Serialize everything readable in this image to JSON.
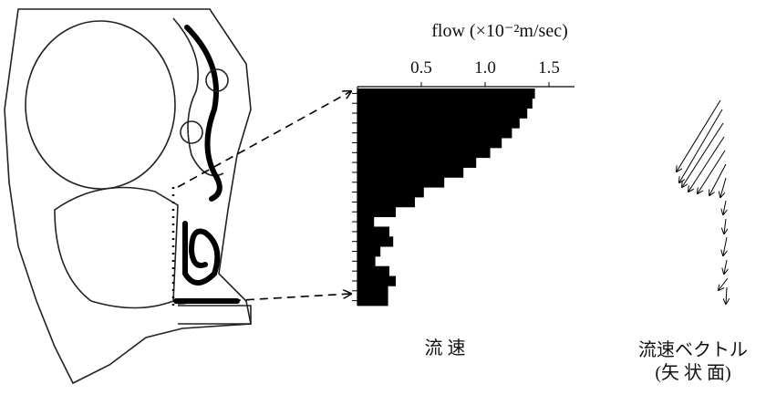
{
  "chart_data": {
    "type": "hbar-profile",
    "title": "flow (×10⁻²m/sec)",
    "values": [
      1.39,
      1.37,
      1.33,
      1.27,
      1.21,
      1.13,
      1.04,
      0.93,
      0.83,
      0.68,
      0.52,
      0.45,
      0.3,
      0.13,
      0.25,
      0.28,
      0.18,
      0.14,
      0.25,
      0.3,
      0.24,
      0.24
    ],
    "color": "#000000",
    "xlim": [
      0,
      1.7
    ],
    "xticks": [
      0.5,
      {
        "value": 1,
        "label": "1.0"
      },
      1.5
    ],
    "caption": "流 速",
    "vector_label": [
      "流速ベクトル",
      "(矢 状 面)"
    ]
  }
}
